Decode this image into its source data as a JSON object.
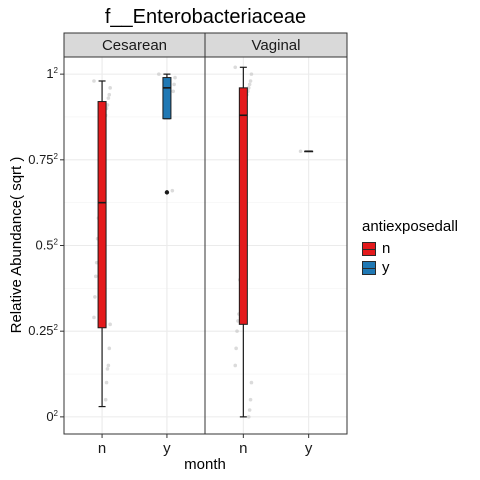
{
  "chart_data": {
    "type": "box",
    "title": "f__Enterobacteriaceae",
    "xlabel": "month",
    "ylabel": "Relative Abundance( sqrt )",
    "facets": [
      "Cesarean",
      "Vaginal"
    ],
    "categories": [
      "n",
      "y"
    ],
    "yticks": [
      {
        "value": 0,
        "base": "0",
        "exp": "2"
      },
      {
        "value": 0.25,
        "base": "0.25",
        "exp": "2"
      },
      {
        "value": 0.5,
        "base": "0.5",
        "exp": "2"
      },
      {
        "value": 0.75,
        "base": "0.75",
        "exp": "2"
      },
      {
        "value": 1,
        "base": "1",
        "exp": "2"
      }
    ],
    "ylim": [
      -0.05,
      1.05
    ],
    "legend": {
      "title": "antiexposedall",
      "position": "right",
      "items": [
        {
          "label": "n",
          "color": "#e41a1c"
        },
        {
          "label": "y",
          "color": "#1f78b4"
        }
      ]
    },
    "boxes": [
      {
        "facet": "Cesarean",
        "category": "n",
        "color": "#e41a1c",
        "whisker_low": 0.03,
        "q1": 0.26,
        "median": 0.625,
        "q3": 0.92,
        "whisker_high": 0.98,
        "outliers": [],
        "jitter": [
          0.98,
          0.96,
          0.94,
          0.93,
          0.91,
          0.9,
          0.88,
          0.86,
          0.8,
          0.75,
          0.7,
          0.66,
          0.63,
          0.62,
          0.58,
          0.52,
          0.45,
          0.41,
          0.35,
          0.29,
          0.27,
          0.2,
          0.15,
          0.14,
          0.1,
          0.05
        ]
      },
      {
        "facet": "Cesarean",
        "category": "y",
        "color": "#1f78b4",
        "whisker_low": 0.87,
        "q1": 0.87,
        "median": 0.96,
        "q3": 0.99,
        "whisker_high": 1.0,
        "outliers": [
          0.655
        ],
        "jitter": [
          1.0,
          0.99,
          0.97,
          0.95,
          0.66
        ]
      },
      {
        "facet": "Vaginal",
        "category": "n",
        "color": "#e41a1c",
        "whisker_low": 0.0,
        "q1": 0.27,
        "median": 0.88,
        "q3": 0.96,
        "whisker_high": 1.02,
        "outliers": [],
        "jitter": [
          1.02,
          1.0,
          0.98,
          0.97,
          0.96,
          0.95,
          0.94,
          0.92,
          0.9,
          0.85,
          0.8,
          0.7,
          0.6,
          0.5,
          0.4,
          0.3,
          0.28,
          0.25,
          0.2,
          0.15,
          0.1,
          0.05,
          0.02,
          0.0
        ]
      },
      {
        "facet": "Vaginal",
        "category": "y",
        "color": "#1f78b4",
        "whisker_low": 0.775,
        "q1": 0.775,
        "median": 0.775,
        "q3": 0.775,
        "whisker_high": 0.775,
        "outliers": [],
        "jitter": [
          0.775
        ]
      }
    ]
  }
}
